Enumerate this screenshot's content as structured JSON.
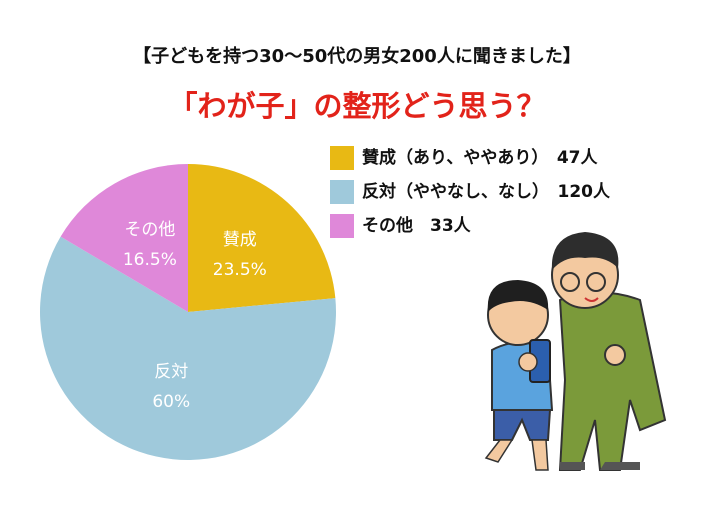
{
  "chart_data": {
    "type": "pie",
    "title": "【子どもを持つ30〜50代の男女200人に聞きました】",
    "subtitle": "「わが子」の整形どう思う？",
    "categories": [
      "賛成",
      "反対",
      "その他"
    ],
    "values": [
      23.5,
      60,
      16.5
    ],
    "value_labels": [
      "23.5%",
      "60%",
      "16.5%"
    ],
    "colors": [
      "#e8b914",
      "#9fc9db",
      "#df88d9"
    ],
    "legend": [
      "賛成（あり、ややあり）　47人",
      "反対（ややなし、なし）　120人",
      "その他　33人"
    ]
  }
}
